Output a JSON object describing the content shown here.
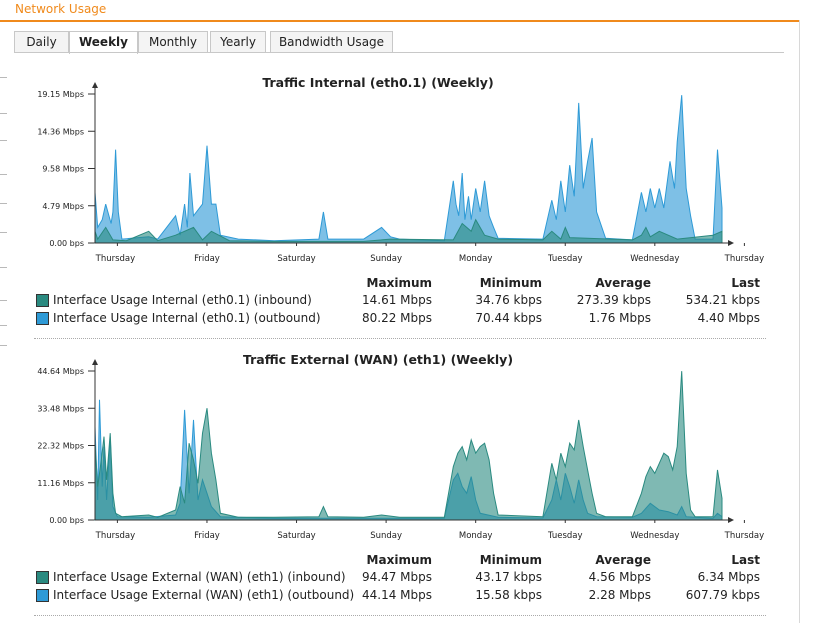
{
  "header": {
    "title": "Network Usage"
  },
  "tabs": [
    {
      "label": "Daily",
      "active": false
    },
    {
      "label": "Weekly",
      "active": true
    },
    {
      "label": "Monthly",
      "active": false
    },
    {
      "label": "Yearly",
      "active": false
    },
    {
      "label": "Bandwidth Usage",
      "active": false
    }
  ],
  "colors": {
    "accent": "#f08a1c",
    "inbound": "#2a8a80",
    "outbound": "#2e9ad6"
  },
  "legend_headers": {
    "max": "Maximum",
    "min": "Minimum",
    "avg": "Average",
    "last": "Last"
  },
  "chart_data": [
    {
      "type": "area",
      "title": "Traffic Internal (eth0.1) (Weekly)",
      "yticks": [
        "19.15 Mbps",
        "14.36 Mbps",
        "9.58 Mbps",
        "4.79 Mbps",
        "0.00 bps"
      ],
      "ylim": [
        0,
        19.15
      ],
      "x_labels": [
        "Thursday",
        "Friday",
        "Saturday",
        "Sunday",
        "Monday",
        "Tuesday",
        "Wednesday",
        "Thursday"
      ],
      "series": [
        {
          "name": "Interface Usage Internal (eth0.1) (inbound)",
          "color": "#2a8a80",
          "stats": {
            "max": "14.61 Mbps",
            "min": "34.76 kbps",
            "avg": "273.39 kbps",
            "last": "534.21 kbps"
          },
          "points": [
            [
              0,
              1.5
            ],
            [
              0.03,
              0.5
            ],
            [
              0.12,
              2.0
            ],
            [
              0.2,
              0.4
            ],
            [
              0.35,
              0.3
            ],
            [
              0.6,
              1.5
            ],
            [
              0.7,
              0.3
            ],
            [
              0.9,
              1.0
            ],
            [
              1.1,
              2.0
            ],
            [
              1.2,
              0.4
            ],
            [
              1.3,
              1.5
            ],
            [
              1.5,
              0.3
            ],
            [
              2.0,
              0.2
            ],
            [
              3.0,
              0.2
            ],
            [
              3.3,
              0.5
            ],
            [
              4.0,
              0.4
            ],
            [
              4.1,
              2.5
            ],
            [
              4.2,
              1.5
            ],
            [
              4.25,
              3.0
            ],
            [
              4.35,
              1.0
            ],
            [
              4.5,
              0.5
            ],
            [
              5.0,
              0.4
            ],
            [
              5.1,
              1.5
            ],
            [
              5.2,
              0.5
            ],
            [
              5.25,
              2.0
            ],
            [
              5.3,
              0.7
            ],
            [
              6.0,
              0.4
            ],
            [
              6.1,
              1.0
            ],
            [
              6.15,
              2.0
            ],
            [
              6.2,
              0.8
            ],
            [
              6.3,
              1.5
            ],
            [
              6.5,
              0.5
            ],
            [
              6.9,
              1.0
            ],
            [
              7.0,
              1.5
            ]
          ]
        },
        {
          "name": "Interface Usage Internal (eth0.1) (outbound)",
          "color": "#2e9ad6",
          "stats": {
            "max": "80.22 Mbps",
            "min": "70.44 kbps",
            "avg": "1.76 Mbps",
            "last": "4.40 Mbps"
          },
          "points": [
            [
              0,
              6.5
            ],
            [
              0.03,
              2.0
            ],
            [
              0.08,
              3.0
            ],
            [
              0.12,
              5.0
            ],
            [
              0.18,
              2.5
            ],
            [
              0.2,
              4.0
            ],
            [
              0.23,
              12.0
            ],
            [
              0.26,
              4.0
            ],
            [
              0.3,
              0.5
            ],
            [
              0.6,
              0.8
            ],
            [
              0.7,
              0.5
            ],
            [
              0.9,
              3.5
            ],
            [
              0.95,
              1.0
            ],
            [
              1.0,
              5.0
            ],
            [
              1.03,
              2.0
            ],
            [
              1.06,
              9.0
            ],
            [
              1.1,
              3.5
            ],
            [
              1.2,
              5.0
            ],
            [
              1.25,
              12.5
            ],
            [
              1.3,
              5.0
            ],
            [
              1.35,
              5.0
            ],
            [
              1.4,
              1.0
            ],
            [
              1.6,
              0.5
            ],
            [
              2.0,
              0.3
            ],
            [
              2.5,
              0.5
            ],
            [
              2.55,
              4.0
            ],
            [
              2.6,
              0.5
            ],
            [
              3.0,
              0.5
            ],
            [
              3.2,
              2.0
            ],
            [
              3.3,
              0.8
            ],
            [
              3.4,
              0.5
            ],
            [
              3.9,
              0.3
            ],
            [
              4.0,
              8.0
            ],
            [
              4.03,
              5.0
            ],
            [
              4.06,
              3.5
            ],
            [
              4.1,
              9.0
            ],
            [
              4.13,
              3.0
            ],
            [
              4.17,
              6.0
            ],
            [
              4.2,
              3.0
            ],
            [
              4.25,
              7.0
            ],
            [
              4.3,
              4.0
            ],
            [
              4.35,
              8.0
            ],
            [
              4.4,
              3.5
            ],
            [
              4.45,
              2.0
            ],
            [
              4.5,
              0.6
            ],
            [
              5.0,
              0.5
            ],
            [
              5.1,
              5.5
            ],
            [
              5.15,
              3.0
            ],
            [
              5.2,
              8.0
            ],
            [
              5.25,
              4.0
            ],
            [
              5.3,
              10.0
            ],
            [
              5.35,
              6.0
            ],
            [
              5.4,
              18.0
            ],
            [
              5.45,
              7.0
            ],
            [
              5.5,
              10.5
            ],
            [
              5.55,
              13.5
            ],
            [
              5.6,
              4.0
            ],
            [
              5.7,
              0.6
            ],
            [
              6.0,
              0.4
            ],
            [
              6.1,
              6.5
            ],
            [
              6.15,
              4.0
            ],
            [
              6.2,
              7.0
            ],
            [
              6.25,
              4.5
            ],
            [
              6.3,
              7.0
            ],
            [
              6.35,
              4.5
            ],
            [
              6.42,
              10.5
            ],
            [
              6.47,
              7.0
            ],
            [
              6.5,
              13.0
            ],
            [
              6.55,
              19.0
            ],
            [
              6.6,
              7.0
            ],
            [
              6.65,
              3.5
            ],
            [
              6.7,
              0.5
            ],
            [
              6.9,
              0.5
            ],
            [
              6.95,
              12.0
            ],
            [
              7.0,
              4.5
            ]
          ]
        }
      ]
    },
    {
      "type": "area",
      "title": "Traffic External (WAN) (eth1) (Weekly)",
      "yticks": [
        "44.64 Mbps",
        "33.48 Mbps",
        "22.32 Mbps",
        "11.16 Mbps",
        "0.00 bps"
      ],
      "ylim": [
        0,
        44.64
      ],
      "x_labels": [
        "Thursday",
        "Friday",
        "Saturday",
        "Sunday",
        "Monday",
        "Tuesday",
        "Wednesday",
        "Thursday"
      ],
      "series": [
        {
          "name": "Interface Usage External (WAN) (eth1) (inbound)",
          "color": "#2a8a80",
          "stats": {
            "max": "94.47 Mbps",
            "min": "43.17 kbps",
            "avg": "4.56 Mbps",
            "last": "6.34 Mbps"
          },
          "points": [
            [
              0,
              23.0
            ],
            [
              0.03,
              10.0
            ],
            [
              0.07,
              18.0
            ],
            [
              0.1,
              25.0
            ],
            [
              0.13,
              12.0
            ],
            [
              0.17,
              26.0
            ],
            [
              0.2,
              8.0
            ],
            [
              0.23,
              2.0
            ],
            [
              0.3,
              1.0
            ],
            [
              0.6,
              1.5
            ],
            [
              0.7,
              0.8
            ],
            [
              0.9,
              3.0
            ],
            [
              0.95,
              10.0
            ],
            [
              1.0,
              5.0
            ],
            [
              1.05,
              23.0
            ],
            [
              1.1,
              18.0
            ],
            [
              1.15,
              11.0
            ],
            [
              1.2,
              26.0
            ],
            [
              1.25,
              33.5
            ],
            [
              1.3,
              20.0
            ],
            [
              1.35,
              12.0
            ],
            [
              1.4,
              2.0
            ],
            [
              1.6,
              0.8
            ],
            [
              2.0,
              0.8
            ],
            [
              2.5,
              1.0
            ],
            [
              2.55,
              4.0
            ],
            [
              2.6,
              1.0
            ],
            [
              3.0,
              0.8
            ],
            [
              3.2,
              1.5
            ],
            [
              3.4,
              0.8
            ],
            [
              3.9,
              0.8
            ],
            [
              4.0,
              16.0
            ],
            [
              4.05,
              20.0
            ],
            [
              4.1,
              22.0
            ],
            [
              4.15,
              18.0
            ],
            [
              4.2,
              24.0
            ],
            [
              4.25,
              20.0
            ],
            [
              4.3,
              22.0
            ],
            [
              4.35,
              23.0
            ],
            [
              4.4,
              18.0
            ],
            [
              4.45,
              8.0
            ],
            [
              4.5,
              1.5
            ],
            [
              5.0,
              1.0
            ],
            [
              5.1,
              17.0
            ],
            [
              5.15,
              12.0
            ],
            [
              5.2,
              20.0
            ],
            [
              5.25,
              16.0
            ],
            [
              5.3,
              23.0
            ],
            [
              5.35,
              21.0
            ],
            [
              5.4,
              30.0
            ],
            [
              5.45,
              22.0
            ],
            [
              5.5,
              15.0
            ],
            [
              5.55,
              8.0
            ],
            [
              5.6,
              2.0
            ],
            [
              5.7,
              1.0
            ],
            [
              6.0,
              1.0
            ],
            [
              6.1,
              8.0
            ],
            [
              6.15,
              13.0
            ],
            [
              6.2,
              16.0
            ],
            [
              6.25,
              14.0
            ],
            [
              6.3,
              17.0
            ],
            [
              6.35,
              20.0
            ],
            [
              6.4,
              19.0
            ],
            [
              6.45,
              15.0
            ],
            [
              6.5,
              22.0
            ],
            [
              6.55,
              44.6
            ],
            [
              6.6,
              14.0
            ],
            [
              6.65,
              3.0
            ],
            [
              6.7,
              1.0
            ],
            [
              6.9,
              1.0
            ],
            [
              6.95,
              15.0
            ],
            [
              7.0,
              6.5
            ]
          ]
        },
        {
          "name": "Interface Usage External (WAN) (eth1) (outbound)",
          "color": "#2e9ad6",
          "stats": {
            "max": "44.14 Mbps",
            "min": "15.58 kbps",
            "avg": "2.28 Mbps",
            "last": "607.79 kbps"
          },
          "points": [
            [
              0,
              28.0
            ],
            [
              0.03,
              6.0
            ],
            [
              0.05,
              36.0
            ],
            [
              0.08,
              10.0
            ],
            [
              0.1,
              22.0
            ],
            [
              0.13,
              6.0
            ],
            [
              0.17,
              25.0
            ],
            [
              0.2,
              4.0
            ],
            [
              0.25,
              1.0
            ],
            [
              0.6,
              0.8
            ],
            [
              0.9,
              1.5
            ],
            [
              0.95,
              5.0
            ],
            [
              1.0,
              33.0
            ],
            [
              1.05,
              8.0
            ],
            [
              1.1,
              30.0
            ],
            [
              1.15,
              6.0
            ],
            [
              1.2,
              12.0
            ],
            [
              1.25,
              8.0
            ],
            [
              1.3,
              4.0
            ],
            [
              1.4,
              1.0
            ],
            [
              2.0,
              0.5
            ],
            [
              3.0,
              0.5
            ],
            [
              3.9,
              0.5
            ],
            [
              4.0,
              12.0
            ],
            [
              4.05,
              14.0
            ],
            [
              4.1,
              10.0
            ],
            [
              4.15,
              8.0
            ],
            [
              4.2,
              13.0
            ],
            [
              4.25,
              6.0
            ],
            [
              4.3,
              2.0
            ],
            [
              4.5,
              0.8
            ],
            [
              5.0,
              0.6
            ],
            [
              5.1,
              6.0
            ],
            [
              5.15,
              12.0
            ],
            [
              5.2,
              6.0
            ],
            [
              5.25,
              14.0
            ],
            [
              5.3,
              10.0
            ],
            [
              5.35,
              5.0
            ],
            [
              5.4,
              12.0
            ],
            [
              5.45,
              6.0
            ],
            [
              5.5,
              2.0
            ],
            [
              5.6,
              1.0
            ],
            [
              6.0,
              0.8
            ],
            [
              6.1,
              2.0
            ],
            [
              6.2,
              5.0
            ],
            [
              6.3,
              3.0
            ],
            [
              6.4,
              2.5
            ],
            [
              6.5,
              1.5
            ],
            [
              6.55,
              4.0
            ],
            [
              6.6,
              1.0
            ],
            [
              6.9,
              0.5
            ],
            [
              6.95,
              2.0
            ],
            [
              7.0,
              1.0
            ]
          ]
        }
      ]
    }
  ]
}
